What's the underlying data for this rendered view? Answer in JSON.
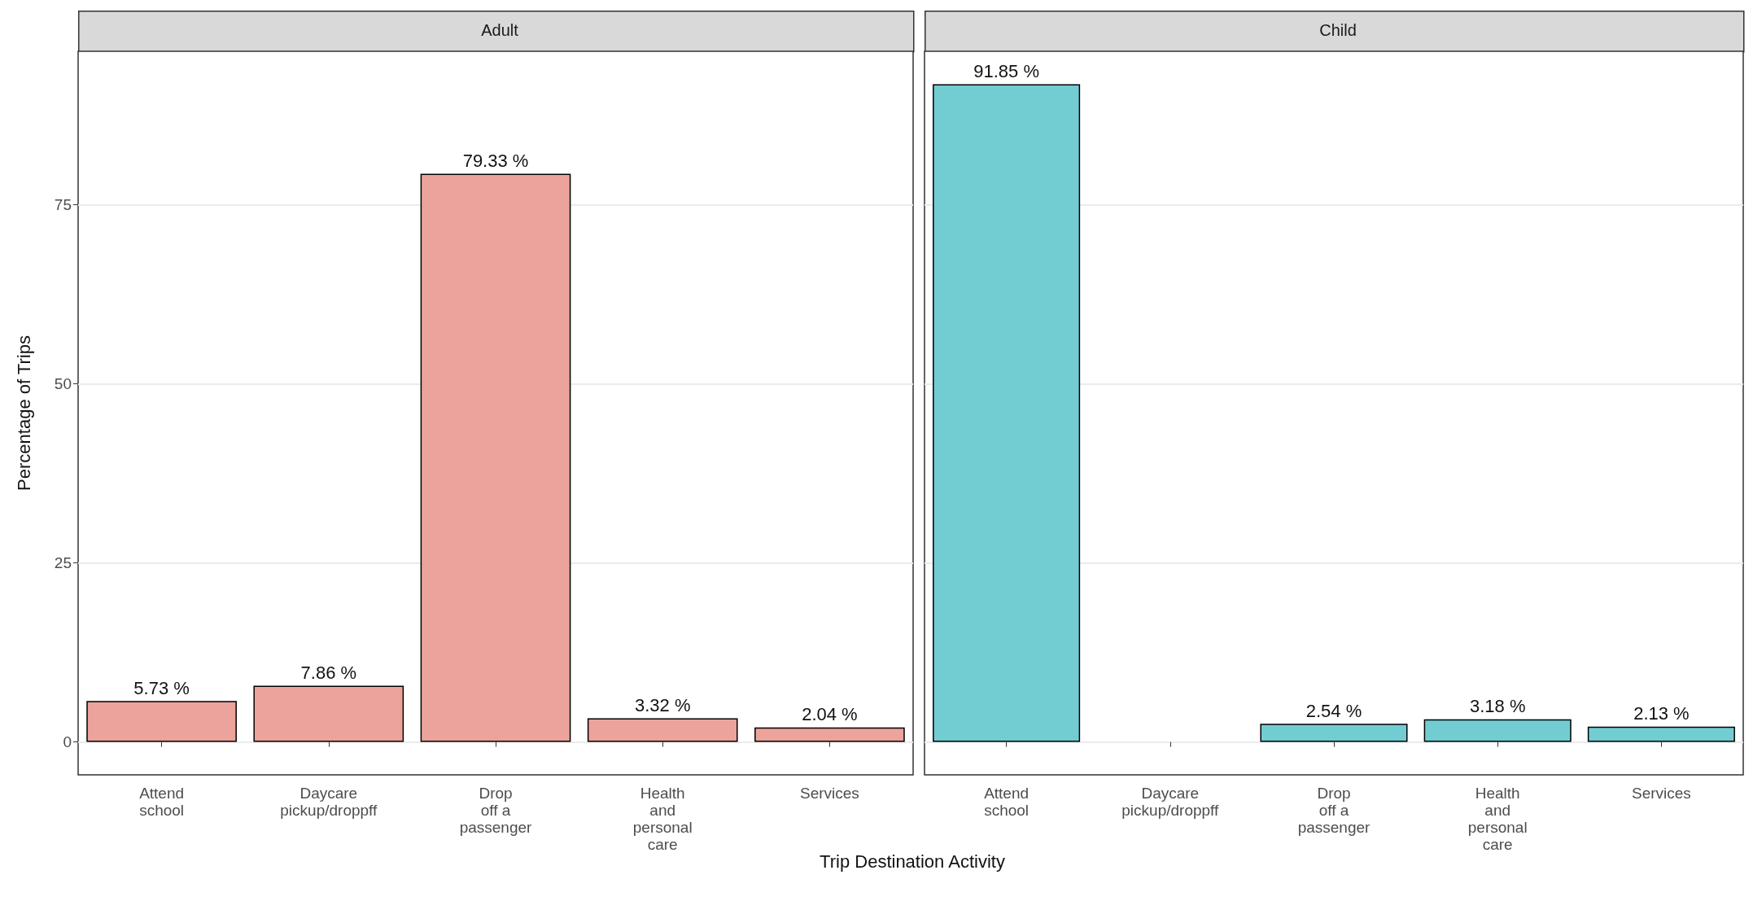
{
  "chart_data": [
    {
      "type": "bar",
      "title": "Adult",
      "ylabel": "Percentage of Trips",
      "xlabel": "Trip Destination Activity",
      "categories": [
        "Attend\nschool",
        "Daycare\npickup/droppff",
        "Drop\noff a\npassenger",
        "Health\nand\npersonal\ncare",
        "Services"
      ],
      "values": [
        5.73,
        7.86,
        79.33,
        3.32,
        2.04
      ],
      "value_labels": [
        "5.73 %",
        "7.86 %",
        "79.33 %",
        "3.32 %",
        "2.04 %"
      ],
      "color": "#eca39b",
      "ylim": [
        -4.59,
        96.44
      ],
      "yticks": [
        0,
        25,
        50,
        75
      ],
      "grid": true
    },
    {
      "type": "bar",
      "title": "Child",
      "categories": [
        "Attend\nschool",
        "Daycare\npickup/droppff",
        "Drop\noff a\npassenger",
        "Health\nand\npersonal\ncare",
        "Services"
      ],
      "values": [
        91.85,
        null,
        2.54,
        3.18,
        2.13
      ],
      "value_labels": [
        "91.85 %",
        null,
        "2.54 %",
        "3.18 %",
        "2.13 %"
      ],
      "color": "#72cdd3",
      "ylim": [
        -4.59,
        96.44
      ],
      "yticks": [
        0,
        25,
        50,
        75
      ],
      "grid": true,
      "tick_labels": "x"
    }
  ]
}
